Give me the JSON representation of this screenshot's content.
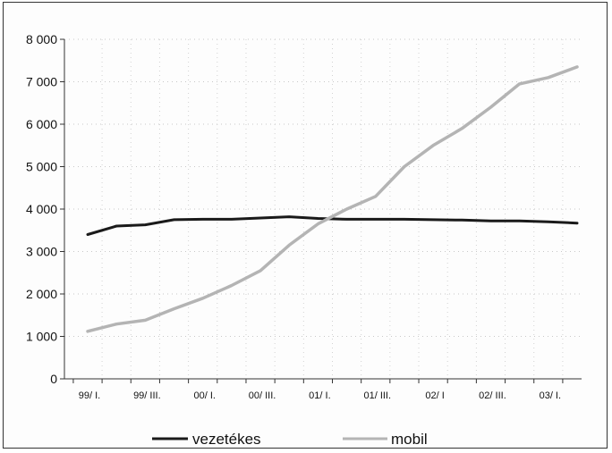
{
  "chart_data": {
    "type": "line",
    "title": "",
    "xlabel": "",
    "ylabel": "",
    "ylim": [
      0,
      8000
    ],
    "yticks": [
      0,
      1000,
      2000,
      3000,
      4000,
      5000,
      6000,
      7000,
      8000
    ],
    "ytick_labels": [
      "0",
      "1 000",
      "2 000",
      "3 000",
      "4 000",
      "5 000",
      "6 000",
      "7 000",
      "8 000"
    ],
    "xtick_labels": [
      "99/ I.",
      "99/ III.",
      "00/ I.",
      "00/ III.",
      "01/ I.",
      "01/ III.",
      "02/ I",
      "02/ III.",
      "03/ I."
    ],
    "grid": true,
    "legend_position": "bottom",
    "series": [
      {
        "name": "vezetékes",
        "color": "#1a1a1a",
        "values": [
          3400,
          3600,
          3630,
          3750,
          3760,
          3760,
          3790,
          3820,
          3780,
          3760,
          3760,
          3760,
          3750,
          3740,
          3720,
          3720,
          3700,
          3670
        ]
      },
      {
        "name": "mobil",
        "color": "#b4b4b4",
        "values": [
          1120,
          1290,
          1380,
          1650,
          1900,
          2200,
          2550,
          3150,
          3650,
          4000,
          4300,
          5000,
          5500,
          5900,
          6400,
          6950,
          7100,
          7350
        ]
      }
    ]
  }
}
